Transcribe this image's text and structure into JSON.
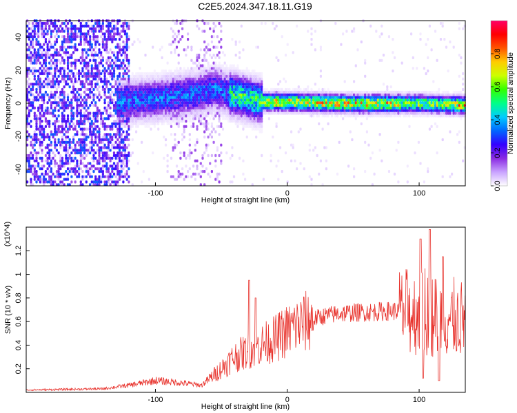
{
  "title": "C2E5.2024.347.18.11.G19",
  "chart_data": [
    {
      "type": "heatmap",
      "xlabel": "Height of straight line (km)",
      "ylabel": "Frequency (Hz)",
      "xlim": [
        -198,
        135
      ],
      "ylim": [
        -50,
        50
      ],
      "xticks": [
        -100,
        0,
        100
      ],
      "yticks": [
        -40,
        -20,
        0,
        20,
        40
      ],
      "colorbar": {
        "label": "Normalized spectral amplitude",
        "range": [
          0,
          1
        ],
        "ticks": [
          "0.0",
          "0.2",
          "0.4",
          "0.6",
          "0.8"
        ],
        "colormap": [
          "#ffffff",
          "#c9a3ff",
          "#8a2be2",
          "#3300ff",
          "#0066ff",
          "#00ccff",
          "#00ff88",
          "#33ff00",
          "#ccff00",
          "#ffcc00",
          "#ff5500",
          "#ff0000",
          "#ff0066"
        ]
      },
      "ridge": [
        {
          "x": -130,
          "f": 0
        },
        {
          "x": -100,
          "f": 2
        },
        {
          "x": -70,
          "f": 5
        },
        {
          "x": -55,
          "f": 8
        },
        {
          "x": -45,
          "f": 5
        },
        {
          "x": -30,
          "f": 2
        },
        {
          "x": -20,
          "f": 0
        },
        {
          "x": 0,
          "f": 0
        },
        {
          "x": 50,
          "f": -1
        },
        {
          "x": 100,
          "f": -1
        },
        {
          "x": 135,
          "f": -2
        }
      ]
    },
    {
      "type": "line",
      "xlabel": "Height of straight line (km)",
      "ylabel": "SNR (10 * v/v)",
      "y_multiplier": "(x10^4)",
      "xlim": [
        -198,
        135
      ],
      "ylim": [
        0,
        1.4
      ],
      "xticks": [
        -100,
        0,
        100
      ],
      "yticks": [
        0.2,
        0.4,
        0.6,
        0.8,
        1.0,
        1.2
      ],
      "color": "#e8332d",
      "envelope": [
        {
          "x": -198,
          "y": 0.02
        },
        {
          "x": -140,
          "y": 0.03
        },
        {
          "x": -120,
          "y": 0.06
        },
        {
          "x": -100,
          "y": 0.1
        },
        {
          "x": -80,
          "y": 0.08
        },
        {
          "x": -65,
          "y": 0.06
        },
        {
          "x": -50,
          "y": 0.2
        },
        {
          "x": -40,
          "y": 0.3
        },
        {
          "x": -30,
          "y": 0.35
        },
        {
          "x": -20,
          "y": 0.4
        },
        {
          "x": -10,
          "y": 0.45
        },
        {
          "x": 0,
          "y": 0.52
        },
        {
          "x": 10,
          "y": 0.58
        },
        {
          "x": 25,
          "y": 0.64
        },
        {
          "x": 40,
          "y": 0.67
        },
        {
          "x": 60,
          "y": 0.68
        },
        {
          "x": 80,
          "y": 0.69
        },
        {
          "x": 95,
          "y": 0.68
        },
        {
          "x": 105,
          "y": 0.66
        },
        {
          "x": 120,
          "y": 0.64
        },
        {
          "x": 135,
          "y": 0.62
        }
      ],
      "peaks": [
        {
          "x": -29,
          "y": 0.95
        },
        {
          "x": -24,
          "y": 0.8
        },
        {
          "x": 101,
          "y": 1.3
        },
        {
          "x": 108,
          "y": 1.38
        },
        {
          "x": 118,
          "y": 1.15
        },
        {
          "x": 103,
          "y": 0.12
        },
        {
          "x": 115,
          "y": 0.1
        }
      ]
    }
  ]
}
